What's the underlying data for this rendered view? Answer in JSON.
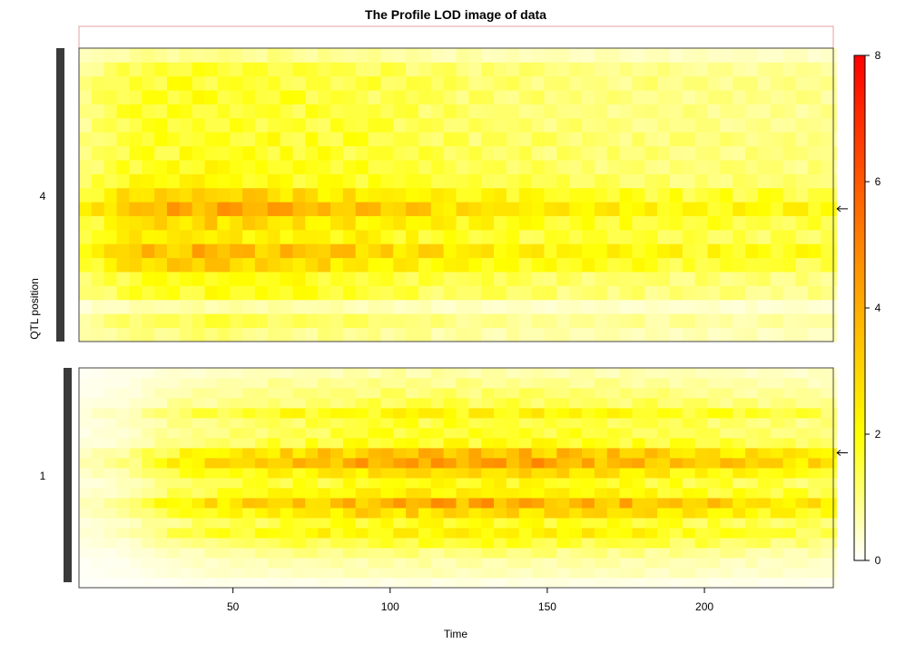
{
  "chart_data": {
    "type": "heatmap",
    "title": "The Profile LOD image of data",
    "xlabel": "Time",
    "ylabel": "QTL position",
    "x_ticks": [
      50,
      100,
      150,
      200
    ],
    "xlim": [
      1,
      241
    ],
    "colorbar": {
      "ticks": [
        0,
        2,
        4,
        6,
        8
      ],
      "range": [
        0,
        8
      ],
      "colors": [
        "#ffffff",
        "#ffff00",
        "#ff8c00",
        "#ff0000"
      ]
    },
    "panels": [
      {
        "chromosome": "4",
        "rows": 21,
        "marked_row": 9,
        "band_profile": [
          0.9,
          1.2,
          0.6,
          1.6,
          1.7,
          2.6,
          3.1,
          2.2,
          2.5,
          3.4,
          2.6,
          1.8,
          1.7,
          1.6,
          1.6,
          1.5,
          1.5,
          1.5,
          1.5,
          1.4,
          0.8
        ],
        "time_profile": [
          [
            1,
            0.55
          ],
          [
            15,
            0.9
          ],
          [
            40,
            1.0
          ],
          [
            80,
            0.9
          ],
          [
            120,
            0.7
          ],
          [
            160,
            0.6
          ],
          [
            241,
            0.5
          ]
        ]
      },
      {
        "chromosome": "1",
        "rows": 22,
        "marked_row": 13,
        "band_profile": [
          0.2,
          0.5,
          0.6,
          0.9,
          1.4,
          2.0,
          1.6,
          2.6,
          3.4,
          2.0,
          1.7,
          2.4,
          3.6,
          3.0,
          1.6,
          1.4,
          1.4,
          1.9,
          1.2,
          1.0,
          0.8,
          0.6
        ],
        "time_profile": [
          [
            1,
            0.15
          ],
          [
            15,
            0.25
          ],
          [
            30,
            0.55
          ],
          [
            60,
            0.8
          ],
          [
            100,
            1.0
          ],
          [
            140,
            1.0
          ],
          [
            180,
            0.9
          ],
          [
            210,
            0.75
          ],
          [
            241,
            0.6
          ]
        ]
      }
    ]
  }
}
